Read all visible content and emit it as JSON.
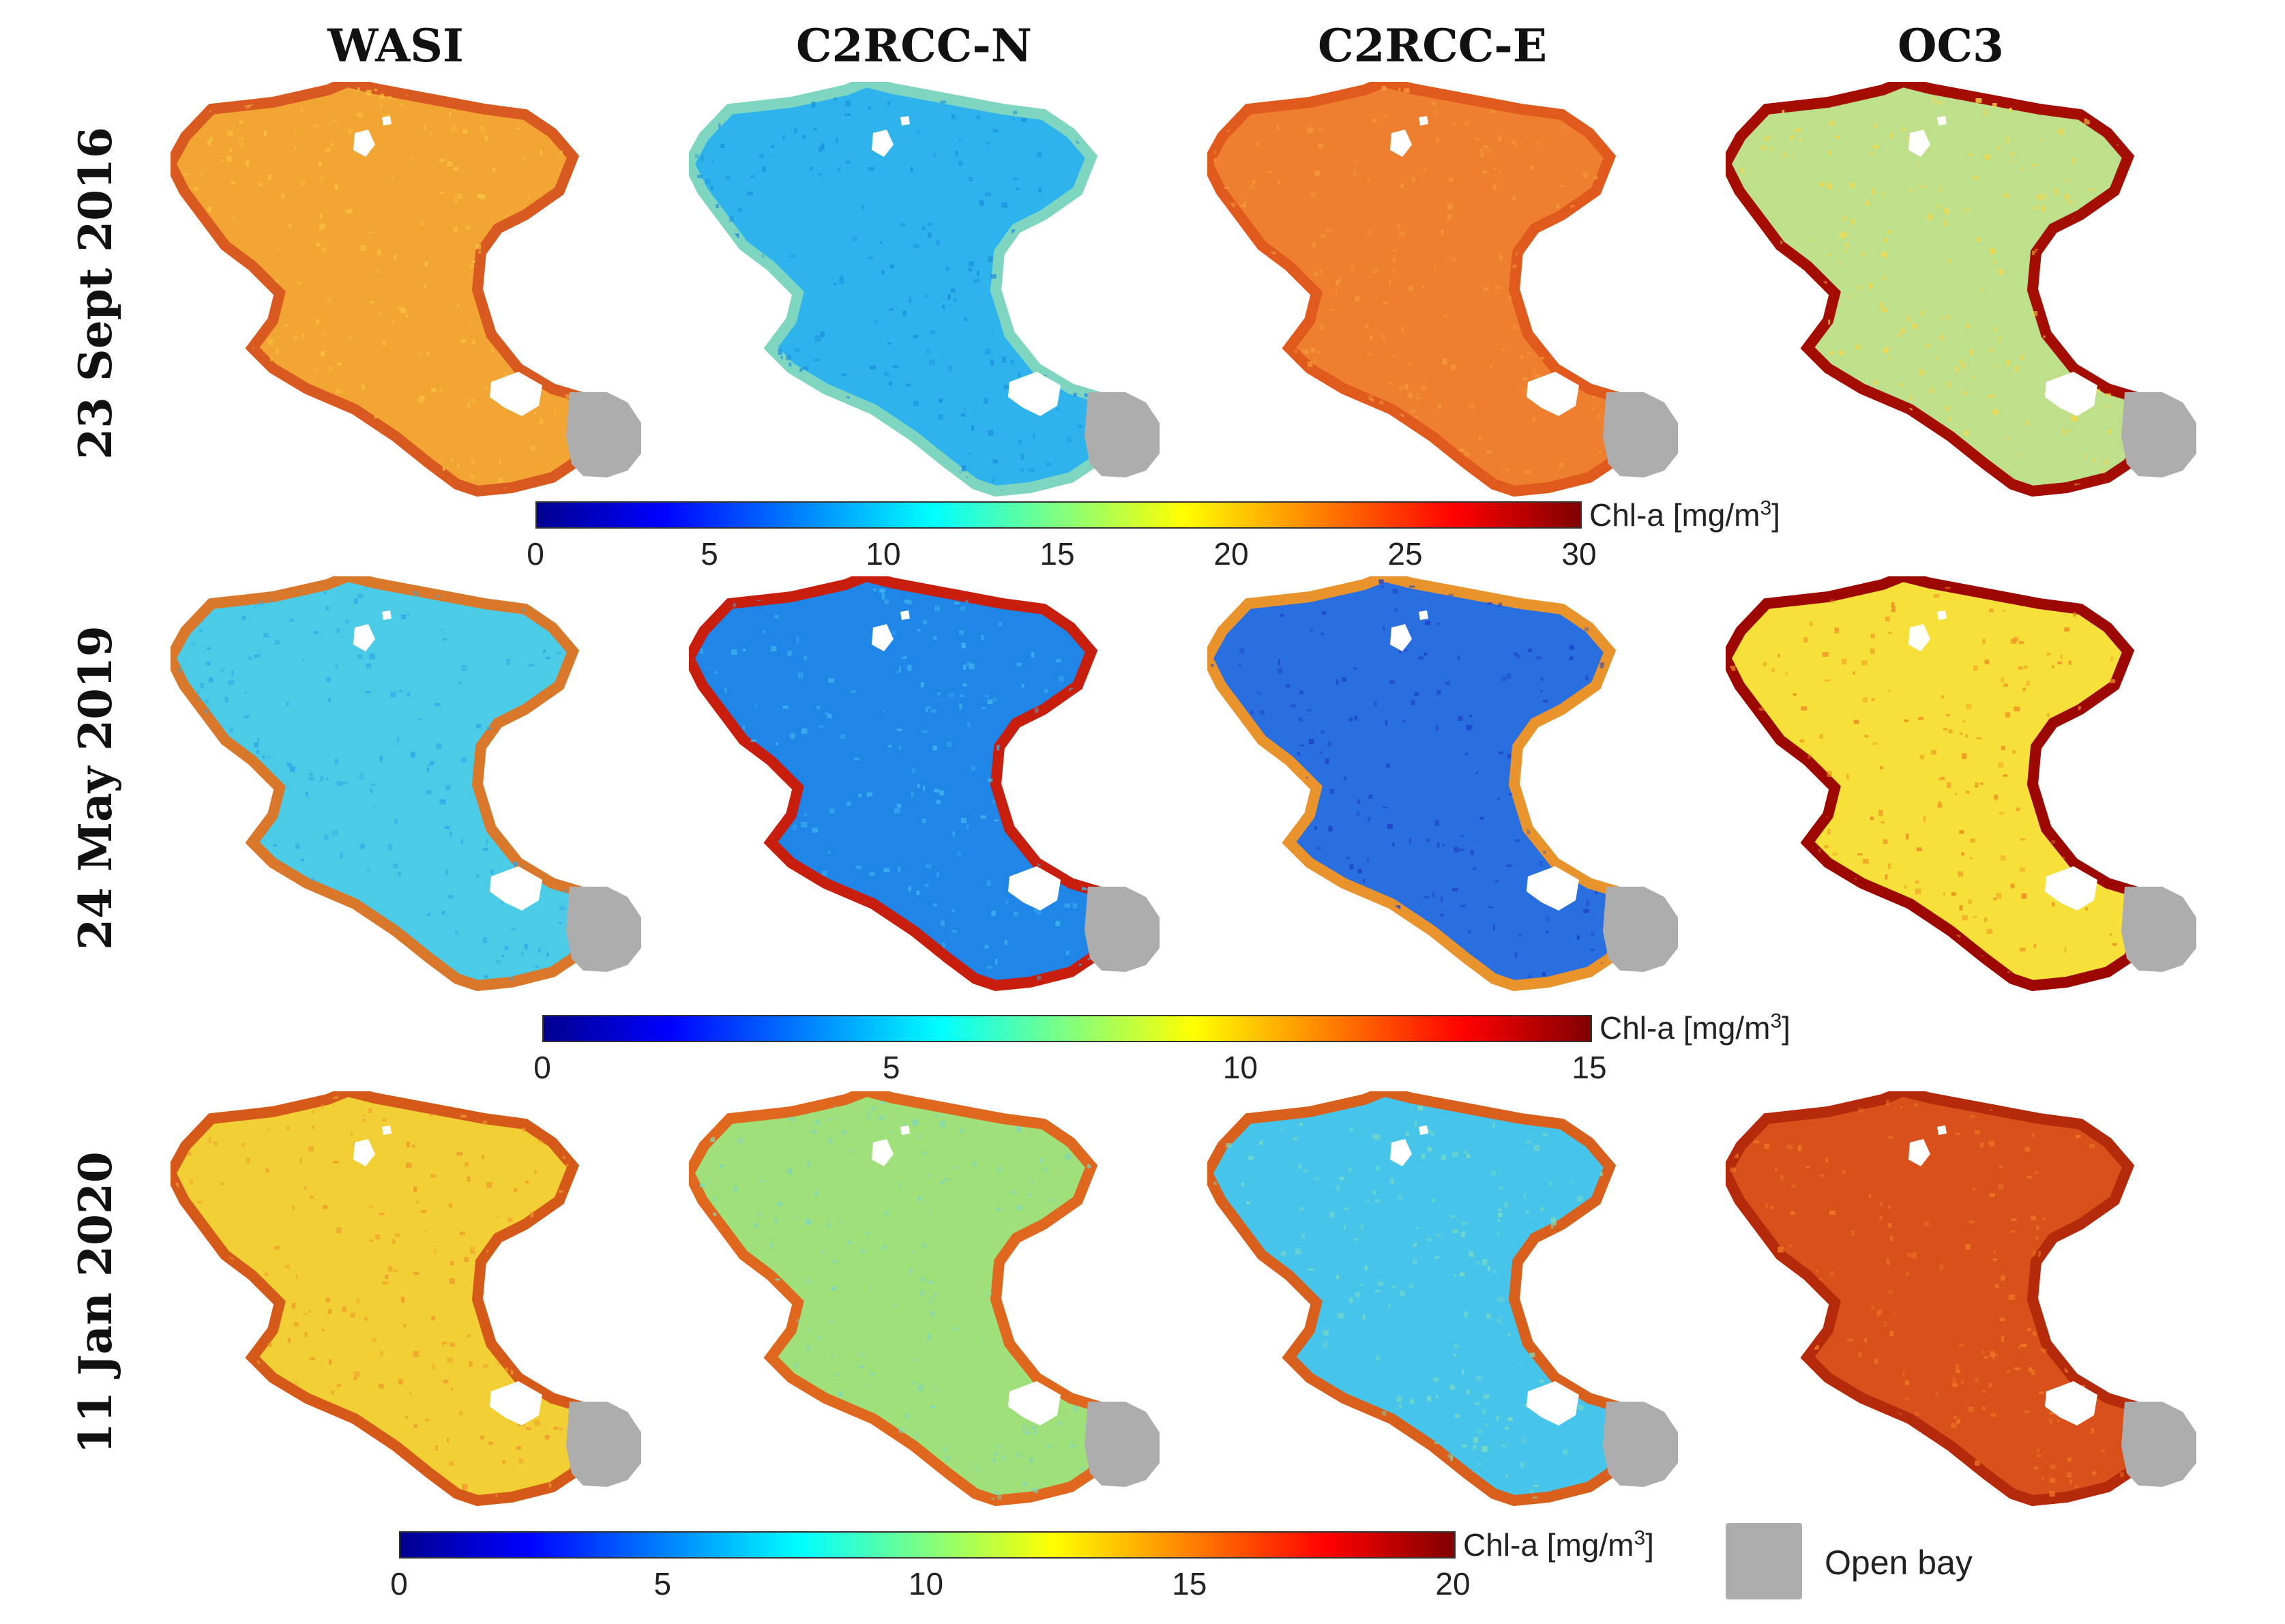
{
  "columns": [
    "WASI",
    "C2RCC-N",
    "C2RCC-E",
    "OC3"
  ],
  "rows": [
    {
      "date": "23 Sept 2016",
      "colorbar": {
        "label": "Chl-a [mg/m",
        "unit_sup": "3",
        "label_end": "]",
        "ticks": [
          "0",
          "5",
          "10",
          "15",
          "20",
          "25",
          "30"
        ],
        "min": 0,
        "max": 30
      },
      "maps": [
        {
          "fill": "#f2a533",
          "rim": "#d95a20",
          "speckle": "#f7c23e"
        },
        {
          "fill": "#2fb3ec",
          "rim": "#7fd6c0",
          "speckle": "#1c8fe0"
        },
        {
          "fill": "#ee7f2e",
          "rim": "#e05a1e",
          "speckle": "#f49a3a"
        },
        {
          "fill": "#bfe08a",
          "rim": "#a30d02",
          "speckle": "#f7d84a"
        }
      ]
    },
    {
      "date": "24 May 2019",
      "colorbar": {
        "label": "Chl-a [mg/m",
        "unit_sup": "3",
        "label_end": "]",
        "ticks": [
          "0",
          "5",
          "10",
          "15"
        ],
        "min": 0,
        "max": 15
      },
      "maps": [
        {
          "fill": "#4ccbe6",
          "rim": "#d9782a",
          "speckle": "#2aa8e8"
        },
        {
          "fill": "#1f86e8",
          "rim": "#c81e0e",
          "speckle": "#3fb5ee"
        },
        {
          "fill": "#2a6fe0",
          "rim": "#e8932c",
          "speckle": "#1c3ec8"
        },
        {
          "fill": "#f7e03a",
          "rim": "#9c0800",
          "speckle": "#ee8a20"
        }
      ]
    },
    {
      "date": "11 Jan 2020",
      "colorbar": {
        "label": "Chl-a [mg/m",
        "unit_sup": "3",
        "label_end": "]",
        "ticks": [
          "0",
          "5",
          "10",
          "15",
          "20"
        ],
        "min": 0,
        "max": 20
      },
      "maps": [
        {
          "fill": "#f3cf36",
          "rim": "#d55a1a",
          "speckle": "#ee9a2a"
        },
        {
          "fill": "#9fe07a",
          "rim": "#e0681e",
          "speckle": "#7fd8b6"
        },
        {
          "fill": "#46c4ea",
          "rim": "#d8601c",
          "speckle": "#7fdcc0"
        },
        {
          "fill": "#d9501a",
          "rim": "#b52a0a",
          "speckle": "#ee7a24"
        }
      ]
    }
  ],
  "legend": {
    "swatch_color": "#adadad",
    "text": "Open bay"
  }
}
